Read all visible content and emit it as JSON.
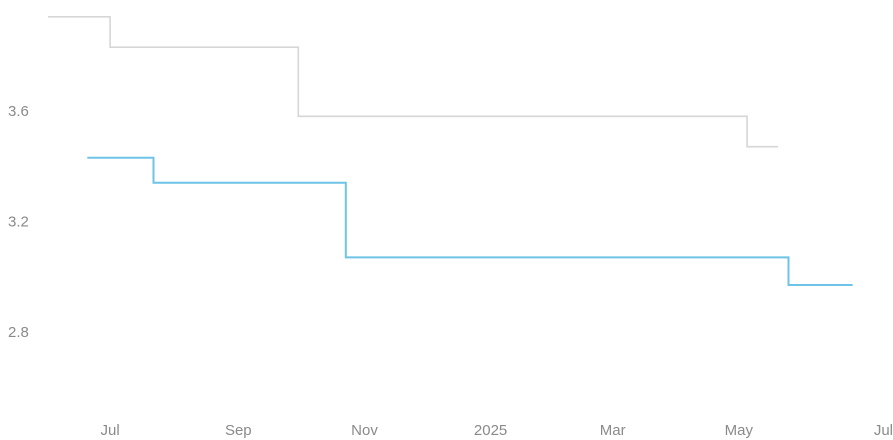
{
  "chart_data": {
    "type": "line",
    "step": true,
    "title": "",
    "xlabel": "",
    "ylabel": "",
    "ylim": [
      2.5,
      3.95
    ],
    "xlim": [
      "2024-06-01",
      "2025-07-01"
    ],
    "grid": false,
    "legend": "none",
    "x_ticks": [
      {
        "label": "Jul",
        "date": "2024-07-01"
      },
      {
        "label": "Sep",
        "date": "2024-09-01"
      },
      {
        "label": "Nov",
        "date": "2024-11-01"
      },
      {
        "label": "2025",
        "date": "2025-01-01"
      },
      {
        "label": "Mar",
        "date": "2025-03-01"
      },
      {
        "label": "May",
        "date": "2025-05-01"
      },
      {
        "label": "Jul",
        "date": "2025-07-01"
      }
    ],
    "y_ticks": [
      {
        "label": "2.8",
        "value": 2.8
      },
      {
        "label": "3.2",
        "value": 3.2
      },
      {
        "label": "3.6",
        "value": 3.6
      }
    ],
    "series": [
      {
        "color": "#d6d6d6",
        "points": [
          {
            "x": "2024-06-01",
            "y": 3.94
          },
          {
            "x": "2024-07-01",
            "y": 3.83
          },
          {
            "x": "2024-09-30",
            "y": 3.58
          },
          {
            "x": "2025-05-05",
            "y": 3.47
          },
          {
            "x": "2025-05-20",
            "y": 3.47
          }
        ]
      },
      {
        "color": "#6ec3e6",
        "points": [
          {
            "x": "2024-06-20",
            "y": 3.43
          },
          {
            "x": "2024-07-22",
            "y": 3.34
          },
          {
            "x": "2024-10-23",
            "y": 3.07
          },
          {
            "x": "2025-05-25",
            "y": 2.97
          },
          {
            "x": "2025-06-25",
            "y": 2.97
          }
        ]
      }
    ]
  }
}
